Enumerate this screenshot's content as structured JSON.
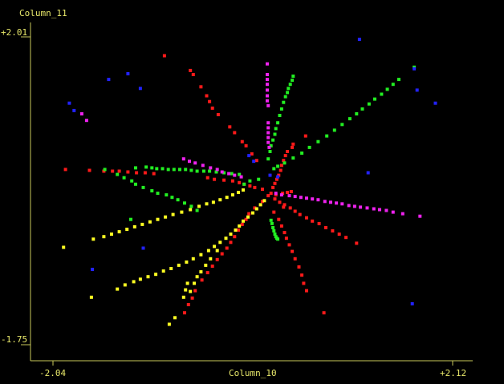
{
  "chart_data": {
    "type": "scatter",
    "xlabel": "Column_10",
    "ylabel": "Column_11",
    "xlim": [
      -2.04,
      2.12
    ],
    "ylim": [
      -1.75,
      2.01
    ],
    "x_tick_labels": [
      "-2.04",
      "+2.12"
    ],
    "y_tick_labels": [
      "+2.01",
      "-1.75"
    ],
    "grid": false,
    "legend": "none",
    "colors": {
      "background": "#000000",
      "axis": "#c8c85a",
      "text": "#e8e86a",
      "red": "#ff1a1a",
      "green": "#22ee22",
      "magenta": "#ee22ee",
      "yellow": "#ffff22",
      "blue": "#2222ff"
    },
    "series": [
      {
        "color": "red",
        "points": [
          [
            -0.88,
            1.78
          ],
          [
            -0.61,
            1.6
          ],
          [
            -0.58,
            1.55
          ],
          [
            -0.5,
            1.4
          ],
          [
            -0.44,
            1.29
          ],
          [
            -0.41,
            1.22
          ],
          [
            -0.38,
            1.14
          ],
          [
            -0.32,
            1.06
          ],
          [
            -0.2,
            0.91
          ],
          [
            -0.15,
            0.84
          ],
          [
            -0.07,
            0.73
          ],
          [
            -0.03,
            0.68
          ],
          [
            0.03,
            0.58
          ],
          [
            0.08,
            0.5
          ],
          [
            -1.66,
            0.38
          ],
          [
            -1.51,
            0.37
          ],
          [
            -1.42,
            0.37
          ],
          [
            -1.35,
            0.37
          ],
          [
            -1.26,
            0.36
          ],
          [
            -1.17,
            0.35
          ],
          [
            -1.08,
            0.35
          ],
          [
            -0.99,
            0.34
          ],
          [
            -0.43,
            0.29
          ],
          [
            -0.36,
            0.27
          ],
          [
            -0.26,
            0.26
          ],
          [
            -0.17,
            0.25
          ],
          [
            -0.1,
            0.23
          ],
          [
            -0.05,
            0.21
          ],
          [
            0.01,
            0.19
          ],
          [
            0.06,
            0.17
          ],
          [
            0.59,
            0.8
          ],
          [
            0.46,
            0.7
          ],
          [
            0.45,
            0.66
          ],
          [
            0.4,
            0.61
          ],
          [
            0.38,
            0.56
          ],
          [
            0.36,
            0.5
          ],
          [
            0.34,
            0.44
          ],
          [
            0.33,
            0.38
          ],
          [
            0.31,
            0.32
          ],
          [
            0.29,
            0.27
          ],
          [
            0.27,
            0.22
          ],
          [
            0.25,
            0.17
          ],
          [
            0.2,
            0.07
          ],
          [
            0.27,
            0.03
          ],
          [
            0.32,
            -0.01
          ],
          [
            0.37,
            -0.04
          ],
          [
            0.43,
            -0.08
          ],
          [
            0.48,
            -0.12
          ],
          [
            0.53,
            -0.16
          ],
          [
            0.6,
            -0.2
          ],
          [
            0.66,
            -0.24
          ],
          [
            0.73,
            -0.27
          ],
          [
            0.8,
            -0.32
          ],
          [
            0.87,
            -0.36
          ],
          [
            0.94,
            -0.4
          ],
          [
            1.01,
            -0.44
          ],
          [
            1.12,
            -0.51
          ],
          [
            0.26,
            -0.13
          ],
          [
            0.31,
            -0.22
          ],
          [
            0.34,
            -0.3
          ],
          [
            0.37,
            -0.38
          ],
          [
            0.39,
            -0.45
          ],
          [
            0.42,
            -0.53
          ],
          [
            0.45,
            -0.61
          ],
          [
            0.48,
            -0.7
          ],
          [
            0.52,
            -0.8
          ],
          [
            0.55,
            -0.9
          ],
          [
            0.57,
            -1.0
          ],
          [
            0.6,
            -1.09
          ],
          [
            0.14,
            0.0
          ],
          [
            0.06,
            -0.08
          ],
          [
            0.0,
            -0.15
          ],
          [
            -0.03,
            -0.22
          ],
          [
            -0.07,
            -0.28
          ],
          [
            -0.11,
            -0.35
          ],
          [
            -0.15,
            -0.43
          ],
          [
            -0.19,
            -0.5
          ],
          [
            -0.23,
            -0.57
          ],
          [
            -0.28,
            -0.64
          ],
          [
            -0.33,
            -0.71
          ],
          [
            -0.38,
            -0.79
          ],
          [
            -0.43,
            -0.87
          ],
          [
            -0.49,
            -0.96
          ],
          [
            -0.56,
            -1.09
          ],
          [
            -0.59,
            -1.18
          ],
          [
            -0.63,
            -1.26
          ],
          [
            -0.67,
            -1.36
          ],
          [
            0.78,
            -1.36
          ],
          [
            -1.91,
            0.39
          ],
          [
            0.14,
            0.15
          ],
          [
            0.23,
            0.1
          ],
          [
            0.28,
            0.08
          ],
          [
            0.35,
            0.1
          ],
          [
            0.4,
            0.11
          ],
          [
            0.44,
            0.12
          ],
          [
            0.36,
            -0.07
          ]
        ]
      },
      {
        "color": "green",
        "points": [
          [
            -1.23,
            -0.22
          ],
          [
            -0.54,
            -0.11
          ],
          [
            -0.6,
            -0.06
          ],
          [
            -0.67,
            -0.02
          ],
          [
            -0.74,
            0.02
          ],
          [
            -0.8,
            0.05
          ],
          [
            -0.86,
            0.08
          ],
          [
            -0.95,
            0.1
          ],
          [
            -1.01,
            0.13
          ],
          [
            -1.1,
            0.17
          ],
          [
            -1.18,
            0.21
          ],
          [
            -1.22,
            0.25
          ],
          [
            -1.3,
            0.29
          ],
          [
            -1.37,
            0.33
          ],
          [
            -1.5,
            0.39
          ],
          [
            -1.07,
            0.42
          ],
          [
            -1.01,
            0.41
          ],
          [
            -1.18,
            0.41
          ],
          [
            -0.96,
            0.4
          ],
          [
            -0.9,
            0.4
          ],
          [
            -0.84,
            0.39
          ],
          [
            -0.78,
            0.39
          ],
          [
            -0.72,
            0.39
          ],
          [
            -0.66,
            0.39
          ],
          [
            -0.6,
            0.38
          ],
          [
            -0.54,
            0.37
          ],
          [
            -0.47,
            0.37
          ],
          [
            -0.41,
            0.37
          ],
          [
            -0.34,
            0.36
          ],
          [
            -0.26,
            0.35
          ],
          [
            -0.18,
            0.34
          ],
          [
            -0.1,
            0.33
          ],
          [
            1.72,
            1.64
          ],
          [
            1.56,
            1.49
          ],
          [
            1.5,
            1.43
          ],
          [
            1.44,
            1.37
          ],
          [
            1.38,
            1.31
          ],
          [
            1.31,
            1.25
          ],
          [
            1.25,
            1.19
          ],
          [
            1.18,
            1.13
          ],
          [
            1.12,
            1.07
          ],
          [
            1.05,
            1.01
          ],
          [
            0.97,
            0.94
          ],
          [
            0.89,
            0.87
          ],
          [
            0.81,
            0.8
          ],
          [
            0.72,
            0.73
          ],
          [
            0.63,
            0.66
          ],
          [
            0.55,
            0.59
          ],
          [
            0.46,
            0.53
          ],
          [
            0.37,
            0.47
          ],
          [
            0.3,
            0.43
          ],
          [
            0.26,
            0.4
          ],
          [
            0.46,
            1.53
          ],
          [
            0.45,
            1.48
          ],
          [
            0.43,
            1.43
          ],
          [
            0.41,
            1.38
          ],
          [
            0.4,
            1.33
          ],
          [
            0.38,
            1.28
          ],
          [
            0.36,
            1.21
          ],
          [
            0.34,
            1.13
          ],
          [
            0.32,
            1.05
          ],
          [
            0.3,
            0.96
          ],
          [
            0.28,
            0.89
          ],
          [
            0.27,
            0.82
          ],
          [
            0.25,
            0.75
          ],
          [
            0.23,
            0.68
          ],
          [
            0.22,
            0.61
          ],
          [
            0.2,
            0.52
          ],
          [
            0.23,
            -0.23
          ],
          [
            0.24,
            -0.27
          ],
          [
            0.25,
            -0.32
          ],
          [
            0.26,
            -0.36
          ],
          [
            0.27,
            -0.4
          ],
          [
            0.28,
            -0.43
          ],
          [
            0.29,
            -0.45
          ],
          [
            0.3,
            -0.46
          ],
          [
            0.01,
            0.25
          ],
          [
            -0.05,
            0.21
          ],
          [
            0.1,
            0.27
          ]
        ]
      },
      {
        "color": "magenta",
        "points": [
          [
            0.19,
            1.68
          ],
          [
            0.19,
            1.55
          ],
          [
            0.19,
            1.49
          ],
          [
            0.19,
            1.43
          ],
          [
            0.19,
            1.36
          ],
          [
            0.19,
            1.29
          ],
          [
            0.19,
            1.23
          ],
          [
            0.2,
            1.17
          ],
          [
            0.2,
            0.96
          ],
          [
            0.2,
            0.9
          ],
          [
            0.2,
            0.84
          ],
          [
            0.2,
            0.78
          ],
          [
            0.2,
            0.72
          ],
          [
            0.21,
            0.66
          ],
          [
            -1.69,
            0.99
          ],
          [
            -1.74,
            1.07
          ],
          [
            -0.68,
            0.52
          ],
          [
            -0.62,
            0.49
          ],
          [
            -0.56,
            0.47
          ],
          [
            -0.48,
            0.44
          ],
          [
            -0.4,
            0.41
          ],
          [
            -0.33,
            0.39
          ],
          [
            -0.28,
            0.36
          ],
          [
            -0.21,
            0.34
          ],
          [
            -0.15,
            0.32
          ],
          [
            -0.08,
            0.3
          ],
          [
            0.28,
            0.1
          ],
          [
            0.34,
            0.08
          ],
          [
            0.42,
            0.07
          ],
          [
            0.48,
            0.06
          ],
          [
            0.54,
            0.05
          ],
          [
            0.6,
            0.04
          ],
          [
            0.66,
            0.03
          ],
          [
            0.72,
            0.02
          ],
          [
            0.79,
            0.0
          ],
          [
            0.85,
            -0.01
          ],
          [
            0.91,
            -0.02
          ],
          [
            0.97,
            -0.03
          ],
          [
            1.04,
            -0.05
          ],
          [
            1.1,
            -0.06
          ],
          [
            1.16,
            -0.07
          ],
          [
            1.23,
            -0.08
          ],
          [
            1.3,
            -0.09
          ],
          [
            1.36,
            -0.1
          ],
          [
            1.43,
            -0.11
          ],
          [
            1.5,
            -0.13
          ],
          [
            1.6,
            -0.15
          ],
          [
            1.78,
            -0.18
          ]
        ]
      },
      {
        "color": "yellow",
        "points": [
          [
            -1.93,
            -0.56
          ],
          [
            -1.62,
            -0.46
          ],
          [
            -1.51,
            -0.43
          ],
          [
            -1.43,
            -0.4
          ],
          [
            -1.35,
            -0.37
          ],
          [
            -1.27,
            -0.34
          ],
          [
            -1.19,
            -0.31
          ],
          [
            -1.11,
            -0.28
          ],
          [
            -1.03,
            -0.25
          ],
          [
            -0.95,
            -0.22
          ],
          [
            -0.87,
            -0.19
          ],
          [
            -0.79,
            -0.16
          ],
          [
            -0.7,
            -0.13
          ],
          [
            -0.61,
            -0.1
          ],
          [
            -0.52,
            -0.06
          ],
          [
            -0.44,
            -0.03
          ],
          [
            -0.37,
            -0.01
          ],
          [
            -0.3,
            0.02
          ],
          [
            -0.23,
            0.05
          ],
          [
            -0.17,
            0.08
          ],
          [
            -0.11,
            0.11
          ],
          [
            -0.06,
            0.14
          ],
          [
            -1.64,
            -1.17
          ],
          [
            -1.37,
            -1.07
          ],
          [
            -1.29,
            -1.02
          ],
          [
            -1.2,
            -0.98
          ],
          [
            -1.13,
            -0.95
          ],
          [
            -1.05,
            -0.92
          ],
          [
            -0.97,
            -0.89
          ],
          [
            -0.89,
            -0.85
          ],
          [
            -0.81,
            -0.82
          ],
          [
            -0.73,
            -0.78
          ],
          [
            -0.65,
            -0.74
          ],
          [
            -0.58,
            -0.7
          ],
          [
            -0.5,
            -0.65
          ],
          [
            -0.42,
            -0.6
          ],
          [
            -0.36,
            -0.55
          ],
          [
            -0.3,
            -0.5
          ],
          [
            -0.24,
            -0.45
          ],
          [
            -0.19,
            -0.4
          ],
          [
            -0.14,
            -0.35
          ],
          [
            -0.1,
            -0.3
          ],
          [
            -0.06,
            -0.24
          ],
          [
            -0.01,
            -0.19
          ],
          [
            0.04,
            -0.14
          ],
          [
            0.08,
            -0.09
          ],
          [
            0.12,
            -0.04
          ],
          [
            0.16,
            0.01
          ],
          [
            -0.64,
            -1.0
          ],
          [
            -0.66,
            -1.08
          ],
          [
            -0.68,
            -1.17
          ],
          [
            -0.77,
            -1.42
          ],
          [
            -0.83,
            -1.5
          ],
          [
            -0.54,
            -0.92
          ],
          [
            -0.57,
            -1.0
          ],
          [
            -0.61,
            -1.1
          ],
          [
            -0.5,
            -0.86
          ],
          [
            -0.45,
            -0.78
          ],
          [
            -0.4,
            -0.7
          ],
          [
            -0.33,
            -0.6
          ]
        ]
      },
      {
        "color": "blue",
        "points": [
          [
            -1.87,
            1.2
          ],
          [
            -1.82,
            1.11
          ],
          [
            -1.46,
            1.49
          ],
          [
            -1.26,
            1.56
          ],
          [
            -1.13,
            1.38
          ],
          [
            1.15,
            1.98
          ],
          [
            1.24,
            0.35
          ],
          [
            1.72,
            1.62
          ],
          [
            1.75,
            1.36
          ],
          [
            1.94,
            1.2
          ],
          [
            1.7,
            -1.25
          ],
          [
            0.0,
            0.56
          ],
          [
            0.05,
            0.49
          ],
          [
            -1.63,
            -0.83
          ],
          [
            -1.1,
            -0.57
          ],
          [
            0.22,
            0.32
          ],
          [
            0.3,
            0.3
          ]
        ]
      }
    ]
  }
}
